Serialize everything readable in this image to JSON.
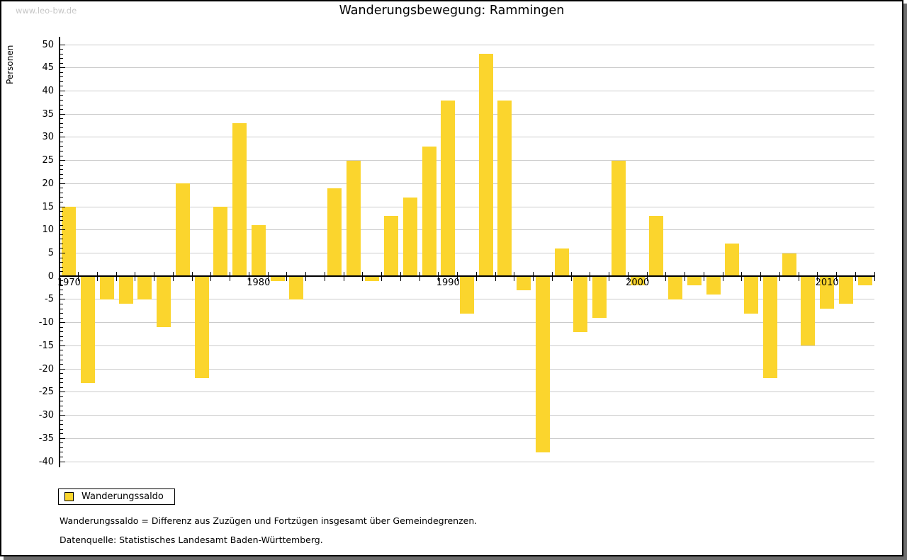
{
  "window": {
    "watermark": "www.leo-bw.de"
  },
  "header": {
    "title": "Wanderungsbewegung: Rammingen"
  },
  "legend": {
    "label": "Wanderungssaldo"
  },
  "footnotes": {
    "definition": "Wanderungssaldo = Differenz aus Zuzügen und Fortzügen insgesamt über Gemeindegrenzen.",
    "source": "Datenquelle: Statistisches Landesamt Baden-Württemberg."
  },
  "colors": {
    "bar": "#FBD52D",
    "grid": "#CBCBCB",
    "axis": "#000000",
    "watermark": "#C6C6C6",
    "shadow": "#6E6E6E"
  },
  "chart_data": {
    "type": "bar",
    "title": "Wanderungsbewegung: Rammingen",
    "xlabel": "",
    "ylabel": "Personen",
    "ylim": [
      -40,
      50
    ],
    "ytick_step": 5,
    "ytick_minor_step": 1,
    "grid": true,
    "legend_position": "bottom-left",
    "x_labeled_ticks": [
      1970,
      1980,
      1990,
      2000,
      2010
    ],
    "categories": [
      1970,
      1971,
      1972,
      1973,
      1974,
      1975,
      1976,
      1977,
      1978,
      1979,
      1980,
      1981,
      1982,
      1983,
      1984,
      1985,
      1986,
      1987,
      1988,
      1989,
      1990,
      1991,
      1992,
      1993,
      1994,
      1995,
      1996,
      1997,
      1998,
      1999,
      2000,
      2001,
      2002,
      2003,
      2004,
      2005,
      2006,
      2007,
      2008,
      2009,
      2010,
      2011,
      2012
    ],
    "series": [
      {
        "name": "Wanderungssaldo",
        "values": [
          15,
          -23,
          -5,
          -6,
          -5,
          -11,
          20,
          -22,
          15,
          33,
          11,
          -1,
          -5,
          0,
          19,
          25,
          -1,
          13,
          17,
          28,
          38,
          -8,
          48,
          38,
          -3,
          -38,
          6,
          -12,
          -9,
          25,
          -2,
          13,
          -5,
          -2,
          -4,
          7,
          -8,
          -22,
          5,
          -15,
          -7,
          -6,
          -2
        ]
      }
    ]
  }
}
